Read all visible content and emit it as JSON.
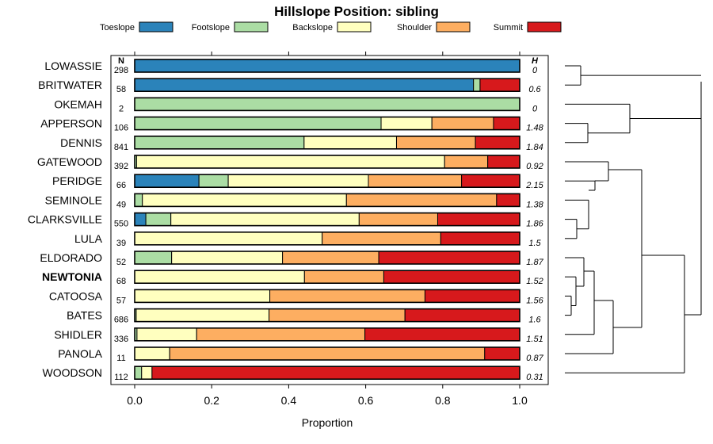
{
  "chart_data": {
    "type": "bar",
    "subtype": "stacked-horizontal-proportion",
    "title": "Hillslope Position: sibling",
    "xlabel": "Proportion",
    "xlim": [
      0,
      1
    ],
    "xticks": [
      "0.0",
      "0.2",
      "0.4",
      "0.6",
      "0.8",
      "1.0"
    ],
    "xtick_values": [
      0,
      0.2,
      0.4,
      0.6,
      0.8,
      1.0
    ],
    "n_header": "N",
    "h_header": "H",
    "legend": [
      {
        "name": "Toeslope",
        "color": "#2b83ba"
      },
      {
        "name": "Footslope",
        "color": "#abdda4"
      },
      {
        "name": "Backslope",
        "color": "#ffffbf"
      },
      {
        "name": "Shoulder",
        "color": "#fdae61"
      },
      {
        "name": "Summit",
        "color": "#d7191c"
      }
    ],
    "rows": [
      {
        "label": "LOWASSIE",
        "n": "298",
        "h": "0",
        "bold": false,
        "values": [
          1.0,
          0,
          0,
          0,
          0
        ]
      },
      {
        "label": "BRITWATER",
        "n": "58",
        "h": "0.6",
        "bold": false,
        "values": [
          0.88,
          0.017,
          0,
          0,
          0.103
        ]
      },
      {
        "label": "OKEMAH",
        "n": "2",
        "h": "0",
        "bold": false,
        "values": [
          0,
          1.0,
          0,
          0,
          0
        ]
      },
      {
        "label": "APPERSON",
        "n": "106",
        "h": "1.48",
        "bold": false,
        "values": [
          0,
          0.64,
          0.132,
          0.16,
          0.068
        ]
      },
      {
        "label": "DENNIS",
        "n": "841",
        "h": "1.84",
        "bold": false,
        "values": [
          0,
          0.44,
          0.24,
          0.205,
          0.115
        ]
      },
      {
        "label": "GATEWOOD",
        "n": "392",
        "h": "0.92",
        "bold": false,
        "values": [
          0,
          0.005,
          0.8,
          0.112,
          0.083
        ]
      },
      {
        "label": "PERIDGE",
        "n": "66",
        "h": "2.15",
        "bold": false,
        "values": [
          0.167,
          0.076,
          0.364,
          0.242,
          0.151
        ]
      },
      {
        "label": "SEMINOLE",
        "n": "49",
        "h": "1.38",
        "bold": false,
        "values": [
          0,
          0.02,
          0.53,
          0.39,
          0.06
        ]
      },
      {
        "label": "CLARKSVILLE",
        "n": "550",
        "h": "1.86",
        "bold": false,
        "values": [
          0.029,
          0.065,
          0.489,
          0.204,
          0.213
        ]
      },
      {
        "label": "LULA",
        "n": "39",
        "h": "1.5",
        "bold": false,
        "values": [
          0,
          0,
          0.487,
          0.308,
          0.205
        ]
      },
      {
        "label": "ELDORADO",
        "n": "52",
        "h": "1.87",
        "bold": false,
        "values": [
          0,
          0.096,
          0.288,
          0.25,
          0.366
        ]
      },
      {
        "label": "NEWTONIA",
        "n": "68",
        "h": "1.52",
        "bold": true,
        "values": [
          0,
          0,
          0.441,
          0.206,
          0.353
        ]
      },
      {
        "label": "CATOOSA",
        "n": "57",
        "h": "1.56",
        "bold": false,
        "values": [
          0,
          0,
          0.351,
          0.403,
          0.246
        ]
      },
      {
        "label": "BATES",
        "n": "686",
        "h": "1.6",
        "bold": false,
        "values": [
          0,
          0.004,
          0.345,
          0.353,
          0.298
        ]
      },
      {
        "label": "SHIDLER",
        "n": "336",
        "h": "1.51",
        "bold": false,
        "values": [
          0,
          0.006,
          0.155,
          0.437,
          0.402
        ]
      },
      {
        "label": "PANOLA",
        "n": "11",
        "h": "0.87",
        "bold": false,
        "values": [
          0,
          0,
          0.091,
          0.818,
          0.091
        ]
      },
      {
        "label": "WOODSON",
        "n": "112",
        "h": "0.31",
        "bold": false,
        "values": [
          0,
          0.018,
          0.027,
          0,
          0.955
        ]
      }
    ]
  }
}
